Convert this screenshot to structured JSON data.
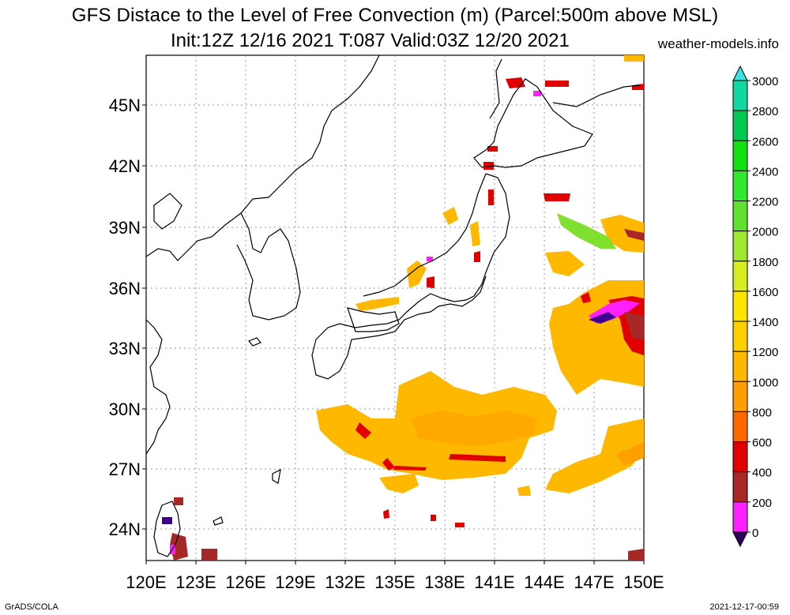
{
  "title": {
    "line1": "GFS Distace to the Level of Free Convection (m) (Parcel:500m above MSL)",
    "line2": "Init:12Z 12/16 2021 T:087 Valid:03Z 12/20 2021",
    "site": "weather-models.info"
  },
  "footer": {
    "left": "GrADS/COLA",
    "right": "2021-12-17-00:59"
  },
  "axes": {
    "lat_labels": [
      "45N",
      "42N",
      "39N",
      "36N",
      "33N",
      "30N",
      "27N",
      "24N"
    ],
    "lon_labels": [
      "120E",
      "123E",
      "126E",
      "129E",
      "132E",
      "135E",
      "138E",
      "141E",
      "144E",
      "147E",
      "150E"
    ]
  },
  "colorbar": {
    "labels": [
      "3000",
      "2800",
      "2600",
      "2400",
      "2200",
      "2000",
      "1800",
      "1600",
      "1400",
      "1200",
      "1000",
      "800",
      "600",
      "400",
      "200",
      "0"
    ],
    "colors": [
      "#10d8d8",
      "#10d8a0",
      "#00c850",
      "#10e010",
      "#30e830",
      "#60e030",
      "#a0e830",
      "#d8ec20",
      "#ffe400",
      "#ffd000",
      "#ffb800",
      "#ffa000",
      "#ff6800",
      "#e00000",
      "#a82828",
      "#ff20ff",
      "#400090"
    ],
    "top_arrow_color": "#40e0e0",
    "bottom_arrow_color": "#300060"
  }
}
